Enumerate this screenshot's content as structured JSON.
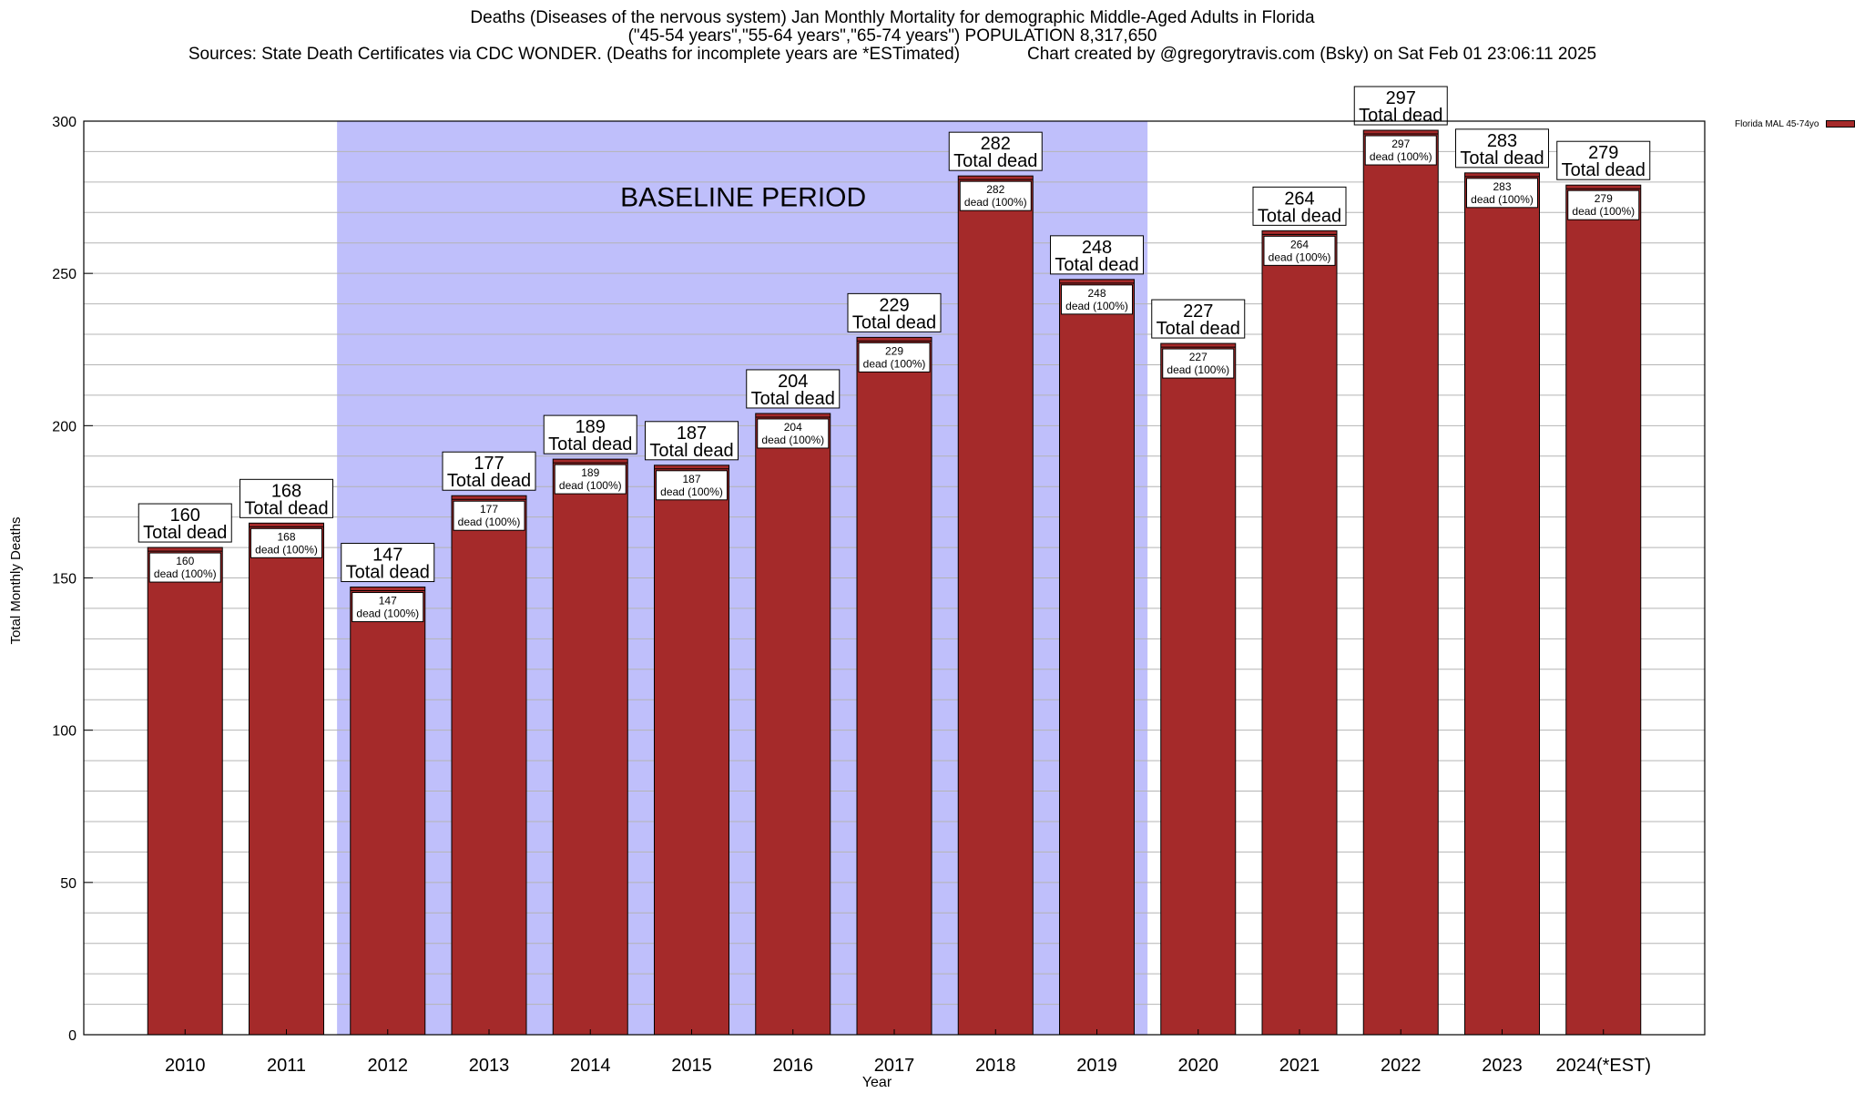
{
  "titles": {
    "line1": "Deaths (Diseases of the nervous system) Jan Monthly Mortality for demographic Middle-Aged Adults in Florida",
    "line2": "(\"45-54 years\",\"55-64 years\",\"65-74 years\") POPULATION 8,317,650",
    "line3_left": "Sources: State Death Certificates via CDC WONDER. (Deaths for incomplete years are *ESTimated)",
    "line3_right": "Chart created by @gregorytravis.com (Bsky) on Sat Feb 01 23:06:11 2025"
  },
  "legend": {
    "label": "Florida MAL 45-74yo"
  },
  "colors": {
    "bar": "#a52a2a",
    "baseline_band": "#bfbffb",
    "grid": "#b4b4b4"
  },
  "chart_data": {
    "type": "bar",
    "title": "Deaths (Diseases of the nervous system) Jan Monthly Mortality for demographic Middle-Aged Adults in Florida",
    "xlabel": "Year",
    "ylabel": "Total Monthly Deaths",
    "ylim": [
      0,
      300
    ],
    "yticks": [
      0,
      50,
      100,
      150,
      200,
      250,
      300
    ],
    "categories": [
      "2010",
      "2011",
      "2012",
      "2013",
      "2014",
      "2015",
      "2016",
      "2017",
      "2018",
      "2019",
      "2020",
      "2021",
      "2022",
      "2023",
      "2024(*EST)"
    ],
    "values": [
      160,
      168,
      147,
      177,
      189,
      187,
      204,
      229,
      282,
      248,
      227,
      264,
      297,
      283,
      279
    ],
    "total_label": "Total dead",
    "inner_label": "dead (100%)",
    "baseline_period": {
      "label": "BASELINE PERIOD",
      "from": "2012",
      "to": "2019"
    },
    "series": [
      {
        "name": "Florida MAL 45-74yo",
        "values": [
          160,
          168,
          147,
          177,
          189,
          187,
          204,
          229,
          282,
          248,
          227,
          264,
          297,
          283,
          279
        ]
      }
    ]
  }
}
